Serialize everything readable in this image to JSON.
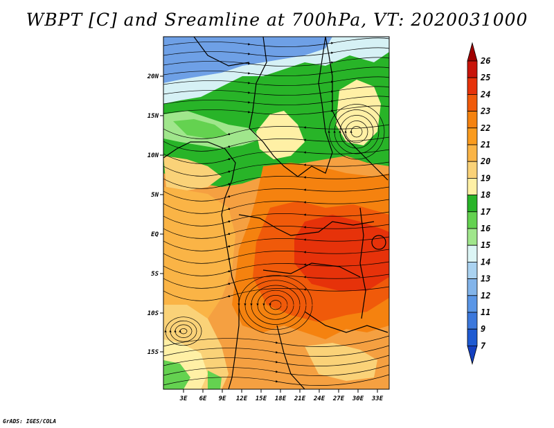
{
  "title": "WBPT [C] and Sreamline at 700hPa, VT: 2020031000",
  "footer": "GrADS: IGES/COLA",
  "lat_labels": [
    "20N",
    "15N",
    "10N",
    "5N",
    "EQ",
    "5S",
    "10S",
    "15S"
  ],
  "lon_labels": [
    "3E",
    "6E",
    "9E",
    "12E",
    "15E",
    "18E",
    "21E",
    "24E",
    "27E",
    "30E",
    "33E"
  ],
  "colorbar": {
    "labels": [
      "26",
      "25",
      "24",
      "23",
      "22",
      "21",
      "20",
      "19",
      "18",
      "17",
      "16",
      "15",
      "14",
      "13",
      "12",
      "11",
      "9",
      "7"
    ],
    "colors": [
      "#a00000",
      "#c8140a",
      "#e6320a",
      "#f05a0a",
      "#f5820f",
      "#fa9b1e",
      "#fab446",
      "#fad278",
      "#fff0a5",
      "#28b428",
      "#64d250",
      "#a0e68c",
      "#dcf5f5",
      "#aad2f0",
      "#82b4ea",
      "#5a96e6",
      "#3c78dc",
      "#1e5ad2",
      "#1440c0"
    ]
  }
}
